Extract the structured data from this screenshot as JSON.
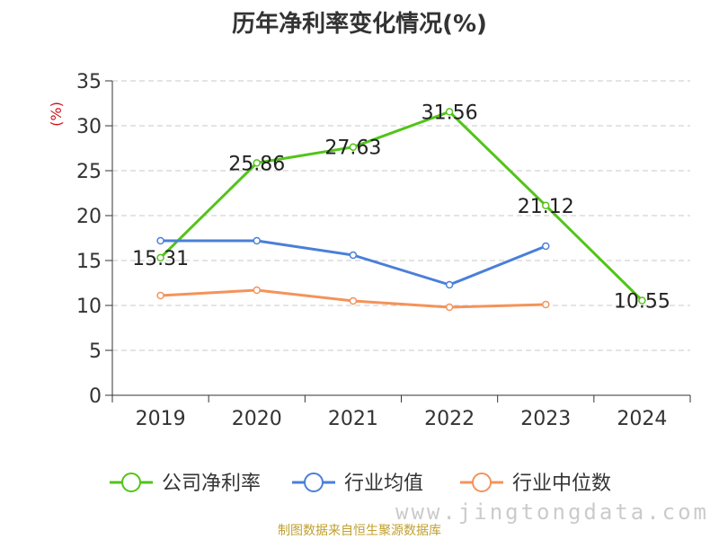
{
  "title": "历年净利率变化情况(%)",
  "source": "制图数据来自恒生聚源数据库",
  "watermark": "www.jingtongdata.com",
  "chart_data": {
    "type": "line",
    "title": "历年净利率变化情况(%)",
    "xlabel": "",
    "ylabel": "(%)",
    "categories": [
      "2019",
      "2020",
      "2021",
      "2022",
      "2023",
      "2024"
    ],
    "ylim": [
      0,
      35
    ],
    "yticks": [
      0,
      5,
      10,
      15,
      20,
      25,
      30,
      35
    ],
    "grid": true,
    "legend": "bottom",
    "series": [
      {
        "name": "公司净利率",
        "color": "#52c41a",
        "values": [
          15.31,
          25.86,
          27.63,
          31.56,
          21.12,
          10.55
        ],
        "labels": [
          "15.31",
          "25.86",
          "27.63",
          "31.56",
          "21.12",
          "10.55"
        ]
      },
      {
        "name": "行业均值",
        "color": "#4a7fd8",
        "values": [
          17.2,
          17.2,
          15.6,
          12.3,
          16.6,
          null
        ]
      },
      {
        "name": "行业中位数",
        "color": "#f4935a",
        "values": [
          11.1,
          11.7,
          10.5,
          9.8,
          10.1,
          null
        ]
      }
    ]
  }
}
